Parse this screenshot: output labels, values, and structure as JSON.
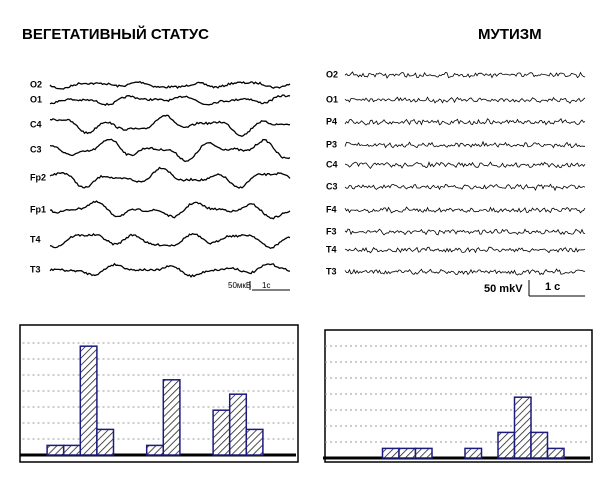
{
  "left": {
    "title": "ВЕГЕТАТИВНЫЙ СТАТУС",
    "channels": [
      "O2",
      "O1",
      "C4",
      "C3",
      "Fp2",
      "Fp1",
      "T4",
      "T3"
    ],
    "scale": {
      "amplitude": "50мкВ",
      "time": "1с"
    },
    "histogram": {
      "values": [
        0,
        0.6,
        0.6,
        6.8,
        1.6,
        0,
        0,
        0.6,
        4.7,
        0,
        0,
        2.8,
        3.8,
        1.6,
        0,
        0
      ]
    }
  },
  "right": {
    "title": "МУТИЗМ",
    "channels": [
      "O2",
      "O1",
      "P4",
      "P3",
      "C4",
      "C3",
      "F4",
      "F3",
      "T4",
      "T3"
    ],
    "scale": {
      "amplitude": "50 mkV",
      "time": "1 c"
    },
    "histogram": {
      "values": [
        0,
        0,
        0,
        0.6,
        0.6,
        0.6,
        0,
        0,
        0.6,
        0,
        1.6,
        3.8,
        1.6,
        0.6,
        0
      ]
    }
  }
}
